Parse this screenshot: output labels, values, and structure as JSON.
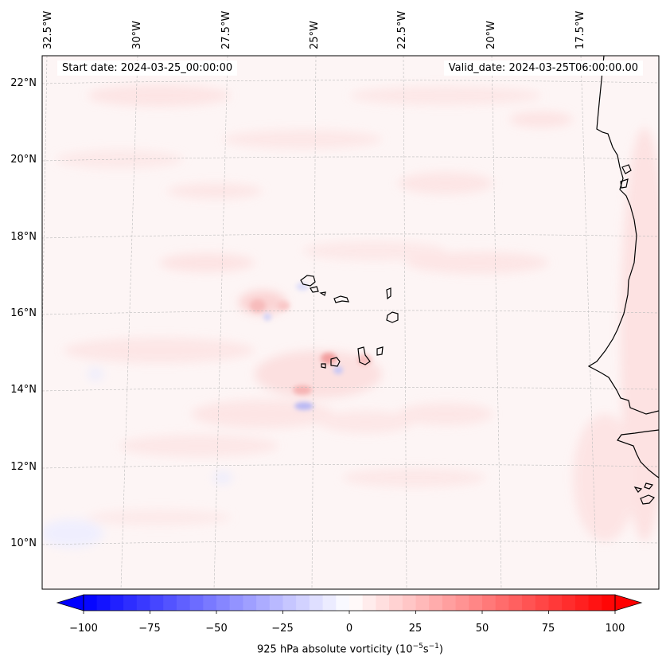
{
  "map": {
    "start_date": "Start date: 2024-03-25_00:00:00",
    "valid_date": "Valid_date: 2024-03-25T06:00:00.00",
    "lon_labels": [
      "32.5°W",
      "30°W",
      "27.5°W",
      "25°W",
      "22.5°W",
      "20°W",
      "17.5°W"
    ],
    "lat_labels": [
      "22°N",
      "20°N",
      "18°N",
      "16°N",
      "14°N",
      "12°N",
      "10°N"
    ],
    "field": "925 hPa absolute vorticity",
    "colormap": "bwr",
    "land_outline_color": "#000000",
    "gridlines": true
  },
  "colorbar": {
    "ticks": [
      "−100",
      "−75",
      "−50",
      "−25",
      "0",
      "25",
      "50",
      "75",
      "100"
    ],
    "title_prefix": "925 hPa absolute vorticity (10",
    "title_exp1": "−5",
    "title_mid": "s",
    "title_exp2": "−1",
    "title_suffix": ")",
    "min": -100,
    "max": 100,
    "levels": 41,
    "low_color": "#0000ff",
    "mid_color": "#ffffff",
    "high_color": "#ff0000",
    "extend": "both"
  }
}
